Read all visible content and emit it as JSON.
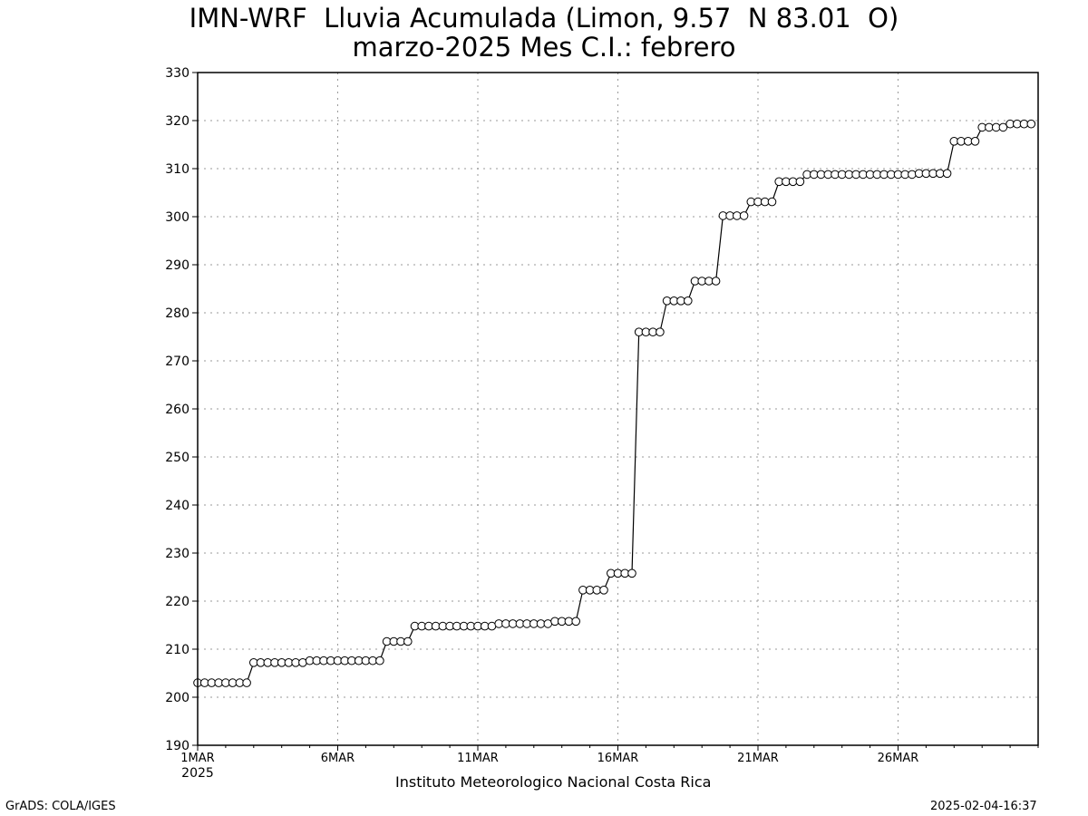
{
  "chart_data": {
    "type": "line",
    "title": "IMN-WRF  Lluvia Acumulada (Limon, 9.57  N 83.01  O)",
    "subtitle": "marzo-2025 Mes C.I.: febrero",
    "xlabel": "",
    "ylabel": "",
    "ylim": [
      190,
      330
    ],
    "yticks": [
      190,
      200,
      210,
      220,
      230,
      240,
      250,
      260,
      270,
      280,
      290,
      300,
      310,
      320,
      330
    ],
    "xlim": [
      1,
      31
    ],
    "xticks": [
      {
        "day": 1,
        "label": "1MAR",
        "sublabel": "2025"
      },
      {
        "day": 6,
        "label": "6MAR",
        "sublabel": ""
      },
      {
        "day": 11,
        "label": "11MAR",
        "sublabel": ""
      },
      {
        "day": 16,
        "label": "16MAR",
        "sublabel": ""
      },
      {
        "day": 21,
        "label": "21MAR",
        "sublabel": ""
      },
      {
        "day": 26,
        "label": "26MAR",
        "sublabel": ""
      }
    ],
    "grid": true,
    "x_step_days": 0.25,
    "values": [
      203.0,
      203.0,
      203.0,
      203.0,
      203.0,
      203.0,
      203.0,
      203.0,
      207.2,
      207.2,
      207.2,
      207.2,
      207.2,
      207.2,
      207.2,
      207.2,
      207.6,
      207.6,
      207.6,
      207.6,
      207.6,
      207.6,
      207.6,
      207.6,
      207.6,
      207.6,
      207.6,
      211.6,
      211.6,
      211.6,
      211.6,
      214.8,
      214.8,
      214.8,
      214.8,
      214.8,
      214.8,
      214.8,
      214.8,
      214.8,
      214.8,
      214.8,
      214.8,
      215.3,
      215.3,
      215.3,
      215.3,
      215.3,
      215.3,
      215.3,
      215.3,
      215.8,
      215.8,
      215.8,
      215.8,
      222.3,
      222.3,
      222.3,
      222.3,
      225.8,
      225.8,
      225.8,
      225.8,
      276.0,
      276.0,
      276.0,
      276.0,
      282.5,
      282.5,
      282.5,
      282.5,
      286.6,
      286.6,
      286.6,
      286.6,
      300.2,
      300.2,
      300.2,
      300.2,
      303.1,
      303.1,
      303.1,
      303.1,
      307.3,
      307.3,
      307.3,
      307.3,
      308.8,
      308.8,
      308.8,
      308.8,
      308.8,
      308.8,
      308.8,
      308.8,
      308.8,
      308.8,
      308.8,
      308.8,
      308.8,
      308.8,
      308.8,
      308.8,
      309.0,
      309.0,
      309.0,
      309.0,
      309.0,
      315.7,
      315.7,
      315.7,
      315.7,
      318.6,
      318.6,
      318.6,
      318.6,
      319.3,
      319.3,
      319.3,
      319.3
    ]
  },
  "footer": {
    "credit": "Instituto Meteorologico Nacional Costa Rica",
    "left": "GrADS: COLA/IGES",
    "right": "2025-02-04-16:37"
  }
}
